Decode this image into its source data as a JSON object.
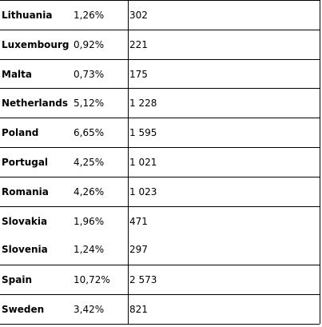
{
  "table": {
    "rows": [
      [
        "Lithuania",
        "1,26%",
        "302"
      ],
      [
        "Luxembourg",
        "0,92%",
        "221"
      ],
      [
        "Malta",
        "0,73%",
        "175"
      ],
      [
        "Netherlands",
        "5,12%",
        "1 228"
      ],
      [
        "Poland",
        "6,65%",
        "1 595"
      ],
      [
        "Portugal",
        "4,25%",
        "1 021"
      ],
      [
        "Romania",
        "4,26%",
        "1 023"
      ],
      [
        "Slovakia",
        "1,96%",
        "471"
      ],
      [
        "Slovenia",
        "1,24%",
        "297"
      ],
      [
        "Spain",
        "10,72%",
        "2 573"
      ],
      [
        "Sweden",
        "3,42%",
        "821"
      ]
    ]
  }
}
